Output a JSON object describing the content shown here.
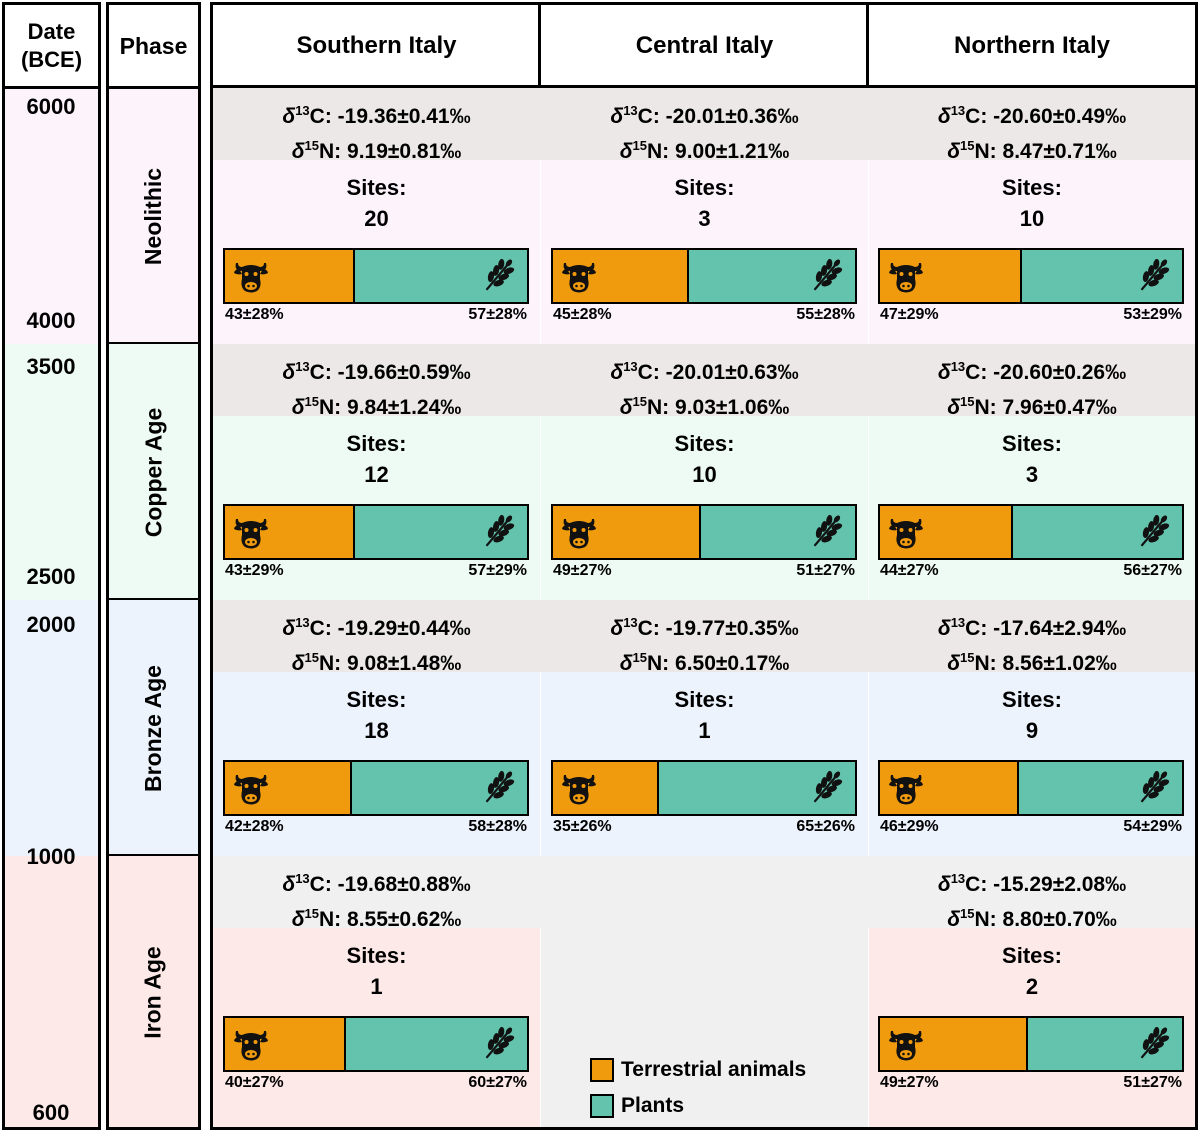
{
  "header": {
    "date_line1": "Date",
    "date_line2": "(BCE)",
    "phase": "Phase",
    "regions": [
      "Southern Italy",
      "Central Italy",
      "Northern Italy"
    ]
  },
  "dates": [
    "6000",
    "4000",
    "3500",
    "2500",
    "2000",
    "1000",
    "600"
  ],
  "labels": {
    "d13c": "C: ",
    "d15n": "N: ",
    "sites": "Sites:"
  },
  "phases": [
    {
      "name": "Neolithic",
      "cells": [
        {
          "d13c": "-19.36±0.41‰",
          "d15n": "9.19±0.81‰",
          "sites": "20",
          "animal_pct": 43,
          "animal": "43±28%",
          "plant": "57±28%"
        },
        {
          "d13c": "-20.01±0.36‰",
          "d15n": "9.00±1.21‰",
          "sites": "3",
          "animal_pct": 45,
          "animal": "45±28%",
          "plant": "55±28%"
        },
        {
          "d13c": "-20.60±0.49‰",
          "d15n": "8.47±0.71‰",
          "sites": "10",
          "animal_pct": 47,
          "animal": "47±29%",
          "plant": "53±29%"
        }
      ]
    },
    {
      "name": "Copper Age",
      "cells": [
        {
          "d13c": "-19.66±0.59‰",
          "d15n": "9.84±1.24‰",
          "sites": "12",
          "animal_pct": 43,
          "animal": "43±29%",
          "plant": "57±29%"
        },
        {
          "d13c": "-20.01±0.63‰",
          "d15n": "9.03±1.06‰",
          "sites": "10",
          "animal_pct": 49,
          "animal": "49±27%",
          "plant": "51±27%"
        },
        {
          "d13c": "-20.60±0.26‰",
          "d15n": "7.96±0.47‰",
          "sites": "3",
          "animal_pct": 44,
          "animal": "44±27%",
          "plant": "56±27%"
        }
      ]
    },
    {
      "name": "Bronze Age",
      "cells": [
        {
          "d13c": "-19.29±0.44‰",
          "d15n": "9.08±1.48‰",
          "sites": "18",
          "animal_pct": 42,
          "animal": "42±28%",
          "plant": "58±28%"
        },
        {
          "d13c": "-19.77±0.35‰",
          "d15n": "6.50±0.17‰",
          "sites": "1",
          "animal_pct": 35,
          "animal": "35±26%",
          "plant": "65±26%"
        },
        {
          "d13c": "-17.64±2.94‰",
          "d15n": "8.56±1.02‰",
          "sites": "9",
          "animal_pct": 46,
          "animal": "46±29%",
          "plant": "54±29%"
        }
      ]
    },
    {
      "name": "Iron Age",
      "cells": [
        {
          "d13c": "-19.68±0.88‰",
          "d15n": "8.55±0.62‰",
          "sites": "1",
          "animal_pct": 40,
          "animal": "40±27%",
          "plant": "60±27%"
        },
        null,
        {
          "d13c": "-15.29±2.08‰",
          "d15n": "8.80±0.70‰",
          "sites": "2",
          "animal_pct": 49,
          "animal": "49±27%",
          "plant": "51±27%"
        }
      ]
    }
  ],
  "legend": {
    "animals": "Terrestrial animals",
    "plants": "Plants"
  },
  "colors": {
    "animals": "#f09a0e",
    "plants": "#64c3ad",
    "iso_band": "#ece8e8",
    "iron_iso_band": "#f0f0f0",
    "phase_bg": [
      "#fdf3fb",
      "#eefaf4",
      "#ecf3fd",
      "#fde9e7"
    ]
  }
}
